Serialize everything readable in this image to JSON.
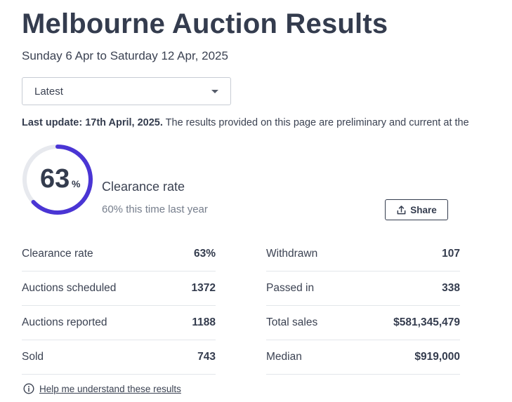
{
  "header": {
    "title": "Melbourne Auction Results",
    "date_range": "Sunday 6 Apr to Saturday 12 Apr, 2025"
  },
  "period_select": {
    "value": "Latest"
  },
  "update_notice": {
    "bold": "Last update: 17th April, 2025.",
    "text": " The results provided on this page are preliminary and current at the"
  },
  "clearance": {
    "rate": "63",
    "rate_fraction": 0.63,
    "percent_sign": "%",
    "label": "Clearance rate",
    "last_year": "60% this time last year",
    "ring_color": "#4a35d4",
    "track_color": "#e7e9ee"
  },
  "share": {
    "label": "Share",
    "icon": "share-upload-icon"
  },
  "stats_left": [
    {
      "label": "Clearance rate",
      "value": "63%"
    },
    {
      "label": "Auctions scheduled",
      "value": "1372"
    },
    {
      "label": "Auctions reported",
      "value": "1188"
    },
    {
      "label": "Sold",
      "value": "743"
    }
  ],
  "stats_right": [
    {
      "label": "Withdrawn",
      "value": "107"
    },
    {
      "label": "Passed in",
      "value": "338"
    },
    {
      "label": "Total sales",
      "value": "$581,345,479"
    },
    {
      "label": "Median",
      "value": "$919,000"
    }
  ],
  "help": {
    "label": "Help me understand these results",
    "icon": "info-icon"
  }
}
